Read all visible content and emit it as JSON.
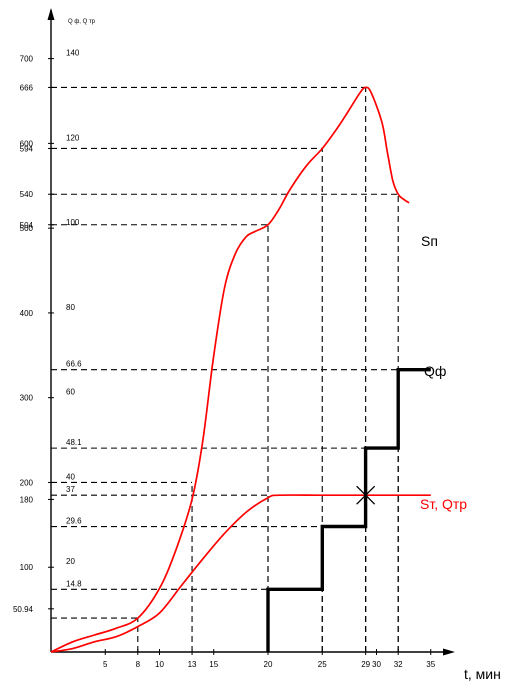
{
  "chart_data": {
    "type": "line",
    "ylabel": "Q ф, Q тр",
    "xlabel": "t, мин",
    "xlim": [
      0,
      37
    ],
    "ylim": [
      0,
      740
    ],
    "x_ticks": [
      "5",
      "8",
      "10",
      "13",
      "15",
      "20",
      "25",
      "29",
      "30",
      "32",
      "35"
    ],
    "x_tick_values": [
      5,
      8,
      10,
      13,
      15,
      20,
      25,
      29,
      30,
      32,
      35
    ],
    "y_ticks_left": [
      "50.94",
      "100",
      "180",
      "200",
      "300",
      "400",
      "500",
      "504",
      "540",
      "594",
      "600",
      "666",
      "700"
    ],
    "y_tick_values_left": [
      50.94,
      100,
      180,
      200,
      300,
      400,
      500,
      504,
      540,
      594,
      600,
      666,
      700
    ],
    "y_ticks_right": [
      "14.8",
      "20",
      "29.6",
      "37",
      "40",
      "48.1",
      "60",
      "66.6",
      "80",
      "100",
      "120",
      "140"
    ],
    "y_tick_values_right": [
      74,
      100,
      148,
      185,
      200,
      240.5,
      300,
      333,
      400,
      500,
      600,
      700
    ],
    "series": [
      {
        "name": "Sп",
        "color": "#ff0000",
        "style": "smooth",
        "x": [
          0,
          2,
          4,
          6,
          8,
          10,
          11.5,
          13,
          14,
          15,
          16,
          17,
          18,
          18.8,
          20,
          21,
          22,
          23.5,
          25,
          26.5,
          27.5,
          28.5,
          29,
          29.5,
          30.5,
          31,
          31.5,
          32,
          32.5,
          33
        ],
        "y": [
          0,
          12,
          20,
          28,
          40,
          75,
          120,
          180,
          250,
          350,
          430,
          470,
          490,
          496,
          504,
          522,
          545,
          573,
          594,
          620,
          640,
          660,
          666,
          660,
          625,
          590,
          556,
          540,
          534,
          530
        ]
      },
      {
        "name": "Sт, Qтр",
        "color": "#ff0000",
        "style": "smooth",
        "x": [
          0,
          2,
          4,
          6,
          8,
          10,
          12,
          14,
          16,
          18,
          20,
          21,
          25,
          29,
          35
        ],
        "y": [
          0,
          4,
          12,
          18,
          30,
          46,
          78,
          110,
          140,
          165,
          182,
          185,
          185,
          185,
          185
        ]
      },
      {
        "name": "Qф",
        "color": "#000000",
        "style": "step",
        "x": [
          20,
          20,
          25,
          25,
          29,
          29,
          32,
          32,
          35
        ],
        "y": [
          0,
          74,
          74,
          148,
          148,
          240.5,
          240.5,
          333,
          333
        ]
      }
    ],
    "reference_lines": [
      {
        "x": 8,
        "y": 40
      },
      {
        "x": 13,
        "y": 200
      },
      {
        "x": 20,
        "y": 504
      },
      {
        "x": 25,
        "y": 594
      },
      {
        "x": 29,
        "y": 666
      },
      {
        "x": 32,
        "y": 540
      },
      {
        "x": 20,
        "y": 185
      },
      {
        "x": 20,
        "y": 74
      },
      {
        "x": 25,
        "y": 148
      },
      {
        "x": 29,
        "y": 240.5
      },
      {
        "x": 32,
        "y": 333
      }
    ],
    "markers": [
      {
        "type": "cross",
        "x": 29,
        "y": 185
      }
    ],
    "grid": false
  }
}
